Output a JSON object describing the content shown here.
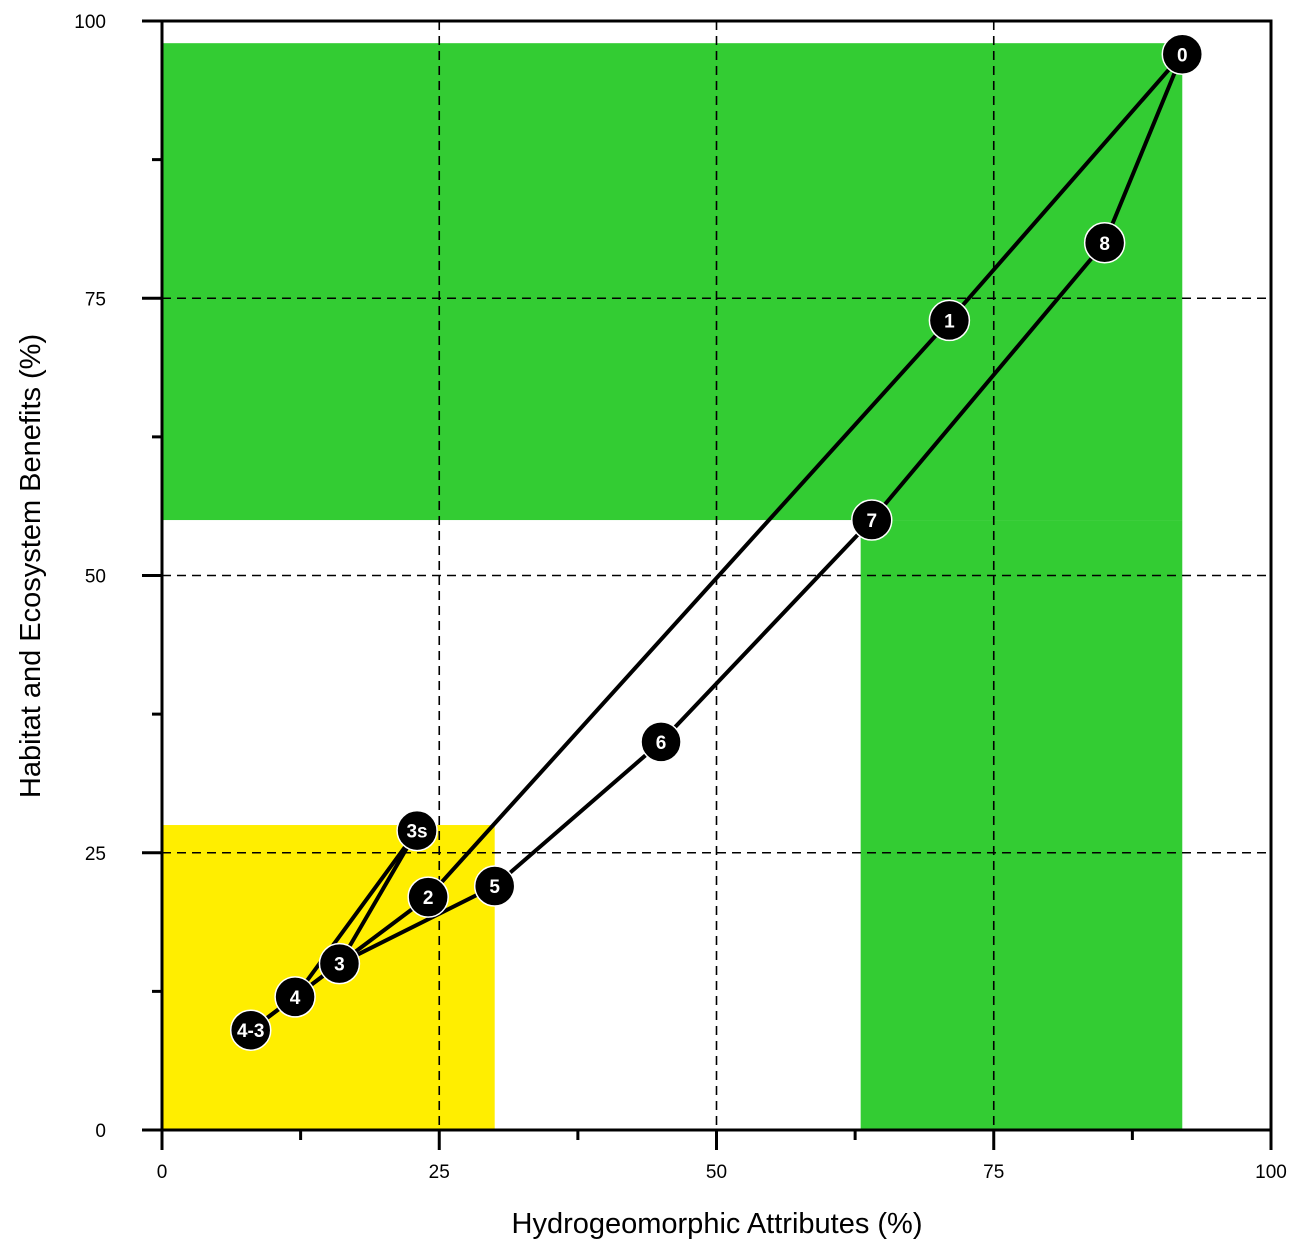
{
  "chart_data": {
    "type": "scatter",
    "title": "",
    "xlabel": "Hydrogeomorphic Attributes (%)",
    "ylabel": "Habitat and Ecosystem Benefits (%)",
    "xlim": [
      0,
      100
    ],
    "ylim": [
      0,
      100
    ],
    "x_ticks": [
      0,
      25,
      50,
      75,
      100
    ],
    "y_ticks": [
      0,
      25,
      50,
      75,
      100
    ],
    "x_tick_labels": [
      "0",
      "25",
      "50",
      "75",
      "100"
    ],
    "y_tick_labels": [
      "0",
      "25",
      "50",
      "75",
      "100"
    ],
    "grid": "dashed at 25, 50, 75",
    "shaded_regions": [
      {
        "color": "#33cc33",
        "x": [
          0,
          92
        ],
        "y": [
          55,
          98
        ]
      },
      {
        "color": "#33cc33",
        "x": [
          63,
          92
        ],
        "y": [
          0,
          55
        ]
      },
      {
        "color": "#ffee00",
        "x": [
          0,
          30
        ],
        "y": [
          0,
          27.5
        ]
      }
    ],
    "points": [
      {
        "label": "0",
        "x": 92,
        "y": 97
      },
      {
        "label": "1",
        "x": 71,
        "y": 73
      },
      {
        "label": "2",
        "x": 24,
        "y": 21
      },
      {
        "label": "3",
        "x": 16,
        "y": 15
      },
      {
        "label": "3s",
        "x": 23,
        "y": 27
      },
      {
        "label": "4",
        "x": 12,
        "y": 12
      },
      {
        "label": "4-3",
        "x": 8,
        "y": 9
      },
      {
        "label": "5",
        "x": 30,
        "y": 22
      },
      {
        "label": "6",
        "x": 45,
        "y": 35
      },
      {
        "label": "7",
        "x": 64,
        "y": 55
      },
      {
        "label": "8",
        "x": 85,
        "y": 80
      }
    ],
    "paths": [
      [
        "0",
        "1",
        "2",
        "3",
        "4",
        "4-3"
      ],
      [
        "0",
        "8",
        "7",
        "6",
        "5",
        "3",
        "4",
        "4-3"
      ],
      [
        "3s",
        "3"
      ],
      [
        "3s",
        "4"
      ]
    ]
  }
}
